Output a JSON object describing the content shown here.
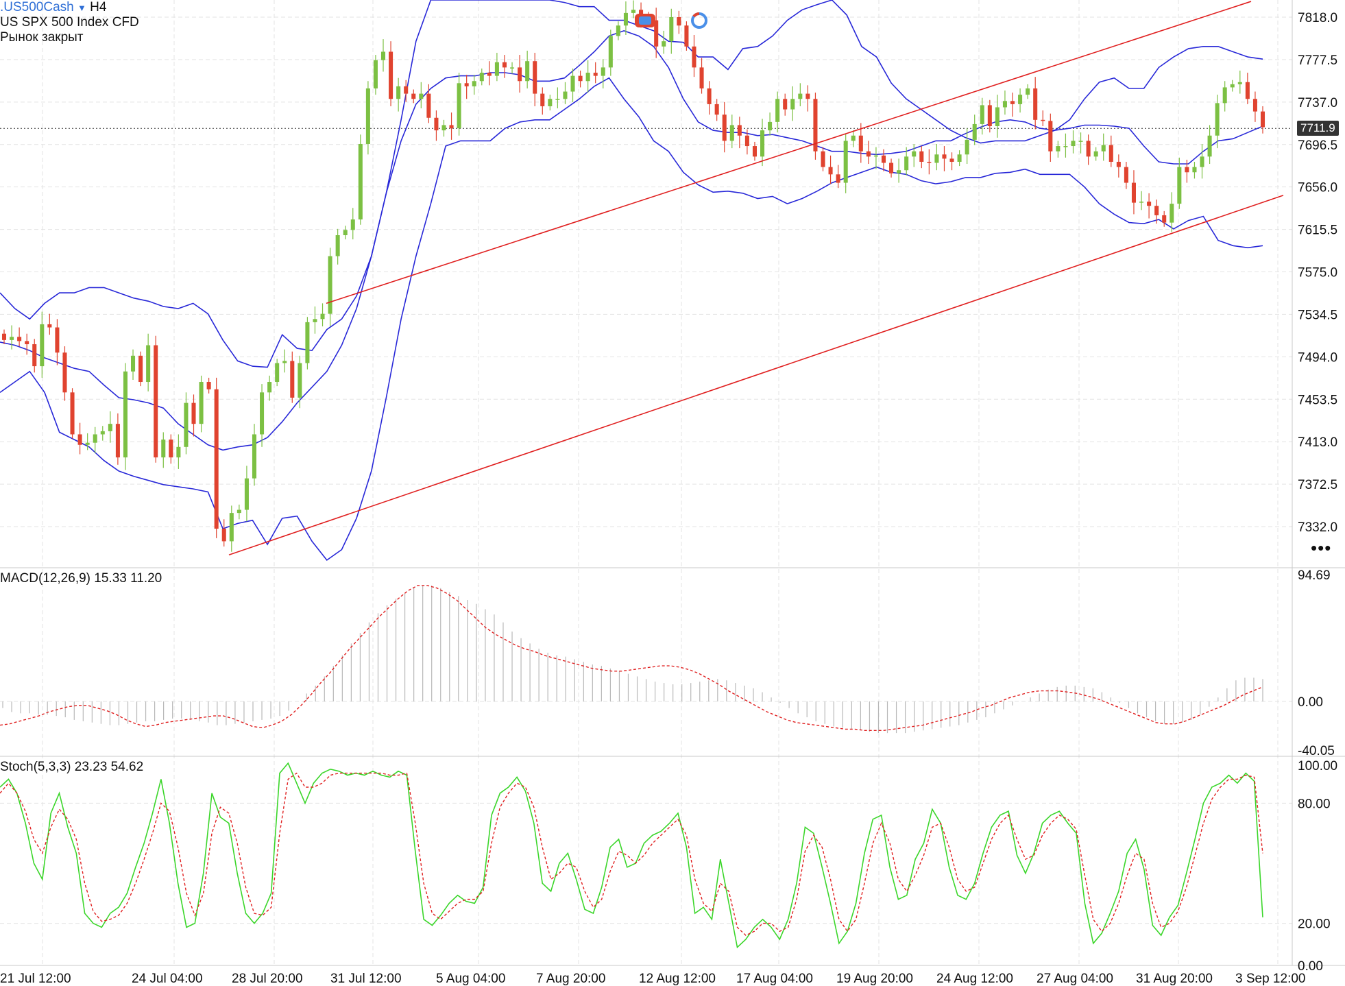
{
  "header": {
    "symbol": ".US500Cash",
    "timeframe": "H4",
    "description": "US SPX 500 Index CFD",
    "status": "Рынок закрыт",
    "current_price": "7711.9",
    "more_icon": "more-dots-icon"
  },
  "chart_data": {
    "type": "candlestick",
    "price_axis": {
      "ticks": [
        "7818.0",
        "7777.5",
        "7737.0",
        "7696.5",
        "7656.0",
        "7615.5",
        "7575.0",
        "7534.5",
        "7494.0",
        "7453.5",
        "7413.0",
        "7372.5",
        "7332.0"
      ],
      "ylim": [
        7300,
        7835
      ]
    },
    "time_labels": [
      "21 Jul 12:00",
      "24 Jul 04:00",
      "28 Jul 20:00",
      "31 Jul 12:00",
      "5 Aug 04:00",
      "7 Aug 20:00",
      "12 Aug 12:00",
      "17 Aug 04:00",
      "19 Aug 20:00",
      "24 Aug 12:00",
      "27 Aug 04:00",
      "31 Aug 20:00",
      "3 Sep 12:00"
    ],
    "closes": [
      7510,
      7513,
      7509,
      7506,
      7485,
      7525,
      7522,
      7498,
      7460,
      7420,
      7410,
      7412,
      7420,
      7423,
      7430,
      7398,
      7480,
      7495,
      7470,
      7505,
      7398,
      7415,
      7398,
      7408,
      7450,
      7430,
      7470,
      7463,
      7330,
      7318,
      7345,
      7348,
      7378,
      7420,
      7460,
      7470,
      7488,
      7490,
      7455,
      7488,
      7527,
      7530,
      7535,
      7590,
      7610,
      7615,
      7625,
      7697,
      7750,
      7777,
      7785,
      7740,
      7752,
      7745,
      7740,
      7745,
      7722,
      7710,
      7715,
      7712,
      7755,
      7752,
      7757,
      7765,
      7762,
      7775,
      7770,
      7770,
      7757,
      7776,
      7745,
      7733,
      7740,
      7740,
      7747,
      7762,
      7757,
      7765,
      7762,
      7770,
      7800,
      7810,
      7822,
      7825,
      7818,
      7815,
      7790,
      7795,
      7818,
      7810,
      7790,
      7770,
      7750,
      7735,
      7725,
      7700,
      7715,
      7705,
      7695,
      7685,
      7710,
      7718,
      7740,
      7730,
      7740,
      7745,
      7740,
      7690,
      7675,
      7668,
      7660,
      7700,
      7705,
      7690,
      7685,
      7686,
      7679,
      7669,
      7672,
      7685,
      7690,
      7680,
      7679,
      7687,
      7683,
      7680,
      7687,
      7701,
      7716,
      7734,
      7714,
      7732,
      7738,
      7735,
      7744,
      7750,
      7720,
      7719,
      7690,
      7695,
      7695,
      7700,
      7700,
      7685,
      7690,
      7696,
      7680,
      7675,
      7660,
      7641,
      7642,
      7638,
      7629,
      7622,
      7640,
      7675,
      7670,
      7675,
      7685,
      7705,
      7736,
      7751,
      7754,
      7756,
      7740,
      7728,
      7713
    ],
    "bollinger": {
      "upper": [
        7555,
        7540,
        7530,
        7545,
        7555,
        7555,
        7560,
        7560,
        7555,
        7550,
        7547,
        7542,
        7540,
        7545,
        7535,
        7510,
        7490,
        7485,
        7484,
        7515,
        7502,
        7500,
        7520,
        7530,
        7552,
        7590,
        7650,
        7720,
        7795,
        7840,
        7840,
        7840,
        7840,
        7840,
        7840,
        7840,
        7840,
        7840,
        7832,
        7828,
        7828,
        7815,
        7815,
        7810,
        7805,
        7795,
        7794,
        7780,
        7780,
        7768,
        7788,
        7790,
        7800,
        7815,
        7825,
        7830,
        7835,
        7820,
        7790,
        7780,
        7755,
        7740,
        7730,
        7720,
        7710,
        7703,
        7698,
        7700,
        7700,
        7700,
        7705,
        7710,
        7720,
        7740,
        7756,
        7760,
        7750,
        7750,
        7770,
        7780,
        7788,
        7790,
        7790,
        7785,
        7780,
        7778
      ],
      "middle": [
        7508,
        7505,
        7500,
        7493,
        7488,
        7483,
        7480,
        7467,
        7455,
        7453,
        7450,
        7445,
        7430,
        7420,
        7410,
        7405,
        7408,
        7410,
        7417,
        7432,
        7450,
        7465,
        7480,
        7505,
        7540,
        7590,
        7650,
        7700,
        7735,
        7750,
        7760,
        7762,
        7762,
        7765,
        7765,
        7763,
        7757,
        7757,
        7760,
        7772,
        7785,
        7800,
        7805,
        7800,
        7790,
        7770,
        7740,
        7718,
        7710,
        7708,
        7708,
        7705,
        7706,
        7703,
        7700,
        7695,
        7690,
        7690,
        7688,
        7687,
        7688,
        7690,
        7695,
        7700,
        7700,
        7707,
        7713,
        7718,
        7720,
        7718,
        7712,
        7710,
        7712,
        7715,
        7715,
        7714,
        7712,
        7695,
        7680,
        7678,
        7678,
        7690,
        7700,
        7702,
        7708,
        7714
      ],
      "lower": [
        7460,
        7470,
        7480,
        7460,
        7422,
        7415,
        7408,
        7395,
        7385,
        7380,
        7376,
        7372,
        7370,
        7368,
        7365,
        7330,
        7335,
        7338,
        7315,
        7340,
        7342,
        7318,
        7300,
        7310,
        7340,
        7385,
        7455,
        7530,
        7590,
        7640,
        7695,
        7700,
        7700,
        7700,
        7712,
        7718,
        7720,
        7720,
        7730,
        7740,
        7752,
        7760,
        7740,
        7723,
        7700,
        7690,
        7670,
        7658,
        7651,
        7652,
        7650,
        7645,
        7647,
        7640,
        7645,
        7652,
        7660,
        7665,
        7670,
        7675,
        7670,
        7668,
        7662,
        7659,
        7661,
        7665,
        7665,
        7669,
        7670,
        7673,
        7668,
        7668,
        7668,
        7656,
        7640,
        7630,
        7622,
        7621,
        7625,
        7616,
        7624,
        7628,
        7605,
        7600,
        7598,
        7600
      ]
    },
    "channel_lines": [
      {
        "from": [
          "28 Jul 20:00",
          7305
        ],
        "to": [
          "3 Sep 12:00",
          7648
        ]
      },
      {
        "from": [
          "31 Jul 12:00",
          7545
        ],
        "to": [
          "3 Sep 12:00",
          7833
        ]
      }
    ],
    "indicators": [
      {
        "name": "MACD(12,26,9)",
        "values": [
          "15.33",
          "11.20"
        ],
        "axis_ticks": [
          "94.69",
          "0.00",
          "-40.05"
        ],
        "ylim": [
          -42,
          100
        ],
        "histogram": [
          -5,
          -8,
          -9,
          -9,
          -10,
          -10,
          -11,
          -12,
          -14,
          -15,
          -16,
          -17,
          -18,
          -18,
          -17,
          -16,
          -15,
          -15,
          -14,
          -13,
          -13,
          -14,
          -15,
          -16,
          -18,
          -18,
          -17,
          -16,
          -15,
          -14,
          -13,
          -11,
          -7,
          0,
          6,
          12,
          19,
          27,
          35,
          44,
          52,
          60,
          67,
          73,
          78,
          82,
          86,
          88,
          88,
          86,
          83,
          80,
          77,
          74,
          70,
          66,
          60,
          53,
          48,
          44,
          40,
          37,
          35,
          34,
          32,
          30,
          28,
          27,
          25,
          23,
          21,
          19,
          17,
          15,
          14,
          13,
          13,
          14,
          15,
          16,
          17,
          16,
          14,
          12,
          10,
          7,
          3,
          -1,
          -5,
          -9,
          -12,
          -15,
          -17,
          -19,
          -20,
          -21,
          -22,
          -23,
          -24,
          -24,
          -24,
          -24,
          -23,
          -22,
          -21,
          -20,
          -19,
          -18,
          -16,
          -14,
          -12,
          -9,
          -6,
          -3,
          0,
          3,
          6,
          9,
          11,
          12,
          12,
          11,
          10,
          7,
          3,
          -1,
          -5,
          -9,
          -12,
          -15,
          -17,
          -17,
          -16,
          -14,
          -10,
          -4,
          3,
          10,
          16,
          18,
          18,
          17
        ],
        "signal": [
          -18,
          -17,
          -15,
          -13,
          -11,
          -8,
          -6,
          -4,
          -3,
          -3,
          -5,
          -7,
          -10,
          -14,
          -17,
          -19,
          -18,
          -16,
          -15,
          -14,
          -13,
          -12,
          -11,
          -11,
          -13,
          -16,
          -19,
          -20,
          -18,
          -15,
          -10,
          -3,
          5,
          14,
          22,
          31,
          40,
          48,
          56,
          64,
          71,
          78,
          84,
          88,
          88,
          86,
          82,
          77,
          70,
          63,
          56,
          51,
          47,
          43,
          40,
          38,
          35,
          33,
          31,
          29,
          27,
          25,
          24,
          23,
          23,
          24,
          25,
          26,
          27,
          27,
          26,
          24,
          21,
          17,
          13,
          8,
          4,
          0,
          -4,
          -8,
          -11,
          -14,
          -16,
          -17,
          -18,
          -19,
          -20,
          -21,
          -21,
          -22,
          -22,
          -22,
          -21,
          -20,
          -19,
          -18,
          -16,
          -14,
          -12,
          -10,
          -8,
          -5,
          -3,
          0,
          3,
          5,
          7,
          8,
          8,
          8,
          7,
          6,
          4,
          2,
          -1,
          -4,
          -7,
          -10,
          -13,
          -16,
          -17,
          -17,
          -15,
          -12,
          -9,
          -6,
          -3,
          1,
          5,
          8,
          11
        ]
      },
      {
        "name": "Stoch(5,3,3)",
        "values": [
          "23.23",
          "54.62"
        ],
        "axis_ticks": [
          "100.00",
          "80.00",
          "20.00",
          "0.00"
        ],
        "ylim": [
          0,
          100
        ],
        "k": [
          88,
          92,
          85,
          70,
          50,
          42,
          75,
          85,
          68,
          55,
          25,
          20,
          18,
          25,
          28,
          35,
          48,
          60,
          75,
          92,
          70,
          40,
          18,
          20,
          45,
          85,
          73,
          70,
          45,
          25,
          20,
          25,
          35,
          95,
          100,
          90,
          80,
          90,
          95,
          97,
          96,
          94,
          95,
          94,
          96,
          94,
          93,
          96,
          94,
          56,
          22,
          19,
          24,
          30,
          34,
          31,
          30,
          38,
          74,
          85,
          88,
          93,
          86,
          70,
          40,
          36,
          50,
          55,
          42,
          27,
          25,
          38,
          58,
          62,
          48,
          50,
          60,
          64,
          66,
          70,
          75,
          58,
          25,
          28,
          22,
          52,
          30,
          8,
          12,
          18,
          22,
          18,
          12,
          22,
          40,
          68,
          65,
          48,
          30,
          10,
          16,
          30,
          55,
          72,
          74,
          48,
          32,
          34,
          52,
          60,
          77,
          70,
          48,
          34,
          32,
          40,
          55,
          68,
          74,
          76,
          54,
          45,
          55,
          70,
          74,
          76,
          70,
          65,
          30,
          10,
          15,
          25,
          36,
          55,
          62,
          47,
          19,
          14,
          23,
          29,
          45,
          62,
          80,
          88,
          90,
          94,
          90,
          95,
          91,
          23
        ],
        "d": [
          85,
          90,
          85,
          76,
          62,
          55,
          68,
          77,
          72,
          62,
          40,
          26,
          21,
          22,
          24,
          30,
          40,
          52,
          65,
          80,
          76,
          58,
          35,
          24,
          35,
          65,
          78,
          75,
          60,
          38,
          25,
          24,
          28,
          65,
          92,
          95,
          88,
          88,
          90,
          94,
          95,
          95,
          95,
          95,
          95,
          95,
          94,
          94,
          95,
          70,
          40,
          25,
          22,
          26,
          30,
          32,
          32,
          36,
          60,
          78,
          85,
          90,
          88,
          78,
          58,
          42,
          45,
          50,
          48,
          36,
          28,
          32,
          46,
          56,
          54,
          50,
          54,
          60,
          64,
          68,
          72,
          64,
          42,
          30,
          26,
          40,
          36,
          18,
          14,
          16,
          20,
          20,
          16,
          18,
          32,
          56,
          64,
          58,
          42,
          22,
          16,
          22,
          40,
          60,
          70,
          60,
          42,
          36,
          44,
          54,
          68,
          70,
          58,
          42,
          36,
          38,
          50,
          62,
          70,
          74,
          62,
          52,
          54,
          64,
          70,
          74,
          72,
          67,
          44,
          22,
          16,
          20,
          30,
          44,
          55,
          52,
          30,
          18,
          20,
          26,
          38,
          54,
          70,
          82,
          88,
          92,
          92,
          94,
          93,
          55
        ]
      }
    ]
  }
}
